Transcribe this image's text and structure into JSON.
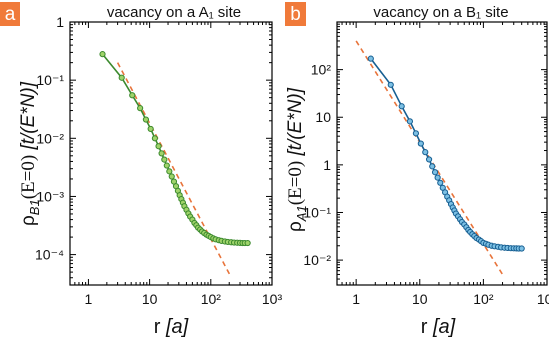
{
  "colors": {
    "badge": "#f07a3a",
    "fit_line": "#e8743b",
    "panel_a_series": "#3c8a2e",
    "panel_a_marker_fill": "#9fd36a",
    "panel_b_series": "#175f92",
    "panel_b_marker_fill": "#7cc0e4"
  },
  "chart_data": [
    {
      "type": "line",
      "panel_label": "a",
      "title": "vacancy on a A₁ site",
      "xlabel": "r [a]",
      "ylabel": "ρB1(E=0) [t/(E*N)]",
      "xscale": "log",
      "yscale": "log",
      "xlim": [
        0.5,
        1000
      ],
      "ylim": [
        3e-05,
        1.0
      ],
      "x_ticks": [
        1,
        10,
        100,
        1000
      ],
      "x_tick_labels": [
        "1",
        "10",
        "10²",
        "10³"
      ],
      "y_ticks": [
        1,
        0.1,
        0.01,
        0.001,
        0.0001
      ],
      "y_tick_labels": [
        "1",
        "10⁻¹",
        "10⁻²",
        "10⁻³",
        "10⁻⁴"
      ],
      "series": [
        {
          "x": [
            1.7,
            3.5,
            5.2,
            7.0,
            8.7,
            10.4,
            12.2,
            14,
            15.7,
            17.4,
            19.1,
            21,
            23,
            25,
            27,
            29,
            31,
            33,
            35,
            37,
            40,
            43,
            46,
            50,
            54,
            58,
            62,
            67,
            72,
            78,
            85,
            92,
            100,
            110,
            120,
            135,
            150,
            170,
            190,
            215,
            240,
            270,
            300,
            330,
            360,
            400
          ],
          "y": [
            0.28,
            0.11,
            0.055,
            0.033,
            0.021,
            0.0145,
            0.01,
            0.0073,
            0.0055,
            0.0043,
            0.0034,
            0.0027,
            0.0022,
            0.0018,
            0.0015,
            0.00125,
            0.00105,
            0.0009,
            0.00078,
            0.00068,
            0.00059,
            0.00051,
            0.00045,
            0.0004,
            0.00035,
            0.00032,
            0.00029,
            0.00027,
            0.00025,
            0.000235,
            0.00022,
            0.00021,
            0.0002,
            0.00019,
            0.000183,
            0.000177,
            0.000172,
            0.000168,
            0.000165,
            0.000163,
            0.000161,
            0.00016,
            0.000159,
            0.000158,
            0.000158,
            0.000158
          ]
        }
      ],
      "fit": {
        "x": [
          3.0,
          205
        ],
        "y": [
          0.2,
          4.47e-05
        ]
      }
    },
    {
      "type": "line",
      "panel_label": "b",
      "title": "vacancy on a B₁ site",
      "xlabel": "r [a]",
      "ylabel": "ρA1(E=0) [t/(E*N)]",
      "xscale": "log",
      "yscale": "log",
      "xlim": [
        0.5,
        1000
      ],
      "ylim": [
        0.003,
        1000
      ],
      "x_ticks": [
        1,
        10,
        100,
        1000
      ],
      "x_tick_labels": [
        "1",
        "10",
        "10²",
        "10³"
      ],
      "y_ticks": [
        100,
        10,
        1,
        0.1,
        0.01
      ],
      "y_tick_labels": [
        "10²",
        "10",
        "1",
        "10⁻¹",
        "10⁻²"
      ],
      "series": [
        {
          "x": [
            1.7,
            3.5,
            5.2,
            7.0,
            8.7,
            10.4,
            12.2,
            14,
            15.7,
            17.4,
            19.1,
            21,
            23,
            25,
            27,
            29,
            31,
            33,
            35,
            37,
            40,
            43,
            46,
            50,
            54,
            58,
            62,
            67,
            72,
            78,
            85,
            92,
            100,
            110,
            120,
            135,
            150,
            170,
            190,
            215,
            240,
            270,
            300,
            330,
            360,
            400
          ],
          "y": [
            170,
            48,
            17,
            8.2,
            4.6,
            2.8,
            1.85,
            1.3,
            0.93,
            0.7,
            0.54,
            0.42,
            0.33,
            0.265,
            0.215,
            0.18,
            0.15,
            0.127,
            0.11,
            0.095,
            0.083,
            0.072,
            0.063,
            0.056,
            0.049,
            0.043,
            0.039,
            0.035,
            0.032,
            0.029,
            0.027,
            0.025,
            0.023,
            0.022,
            0.021,
            0.02,
            0.0195,
            0.019,
            0.0185,
            0.0182,
            0.018,
            0.0178,
            0.0177,
            0.0176,
            0.0175,
            0.0175
          ]
        }
      ],
      "fit": {
        "x": [
          1.0,
          210
        ],
        "y": [
          400,
          0.0045
        ]
      }
    }
  ]
}
